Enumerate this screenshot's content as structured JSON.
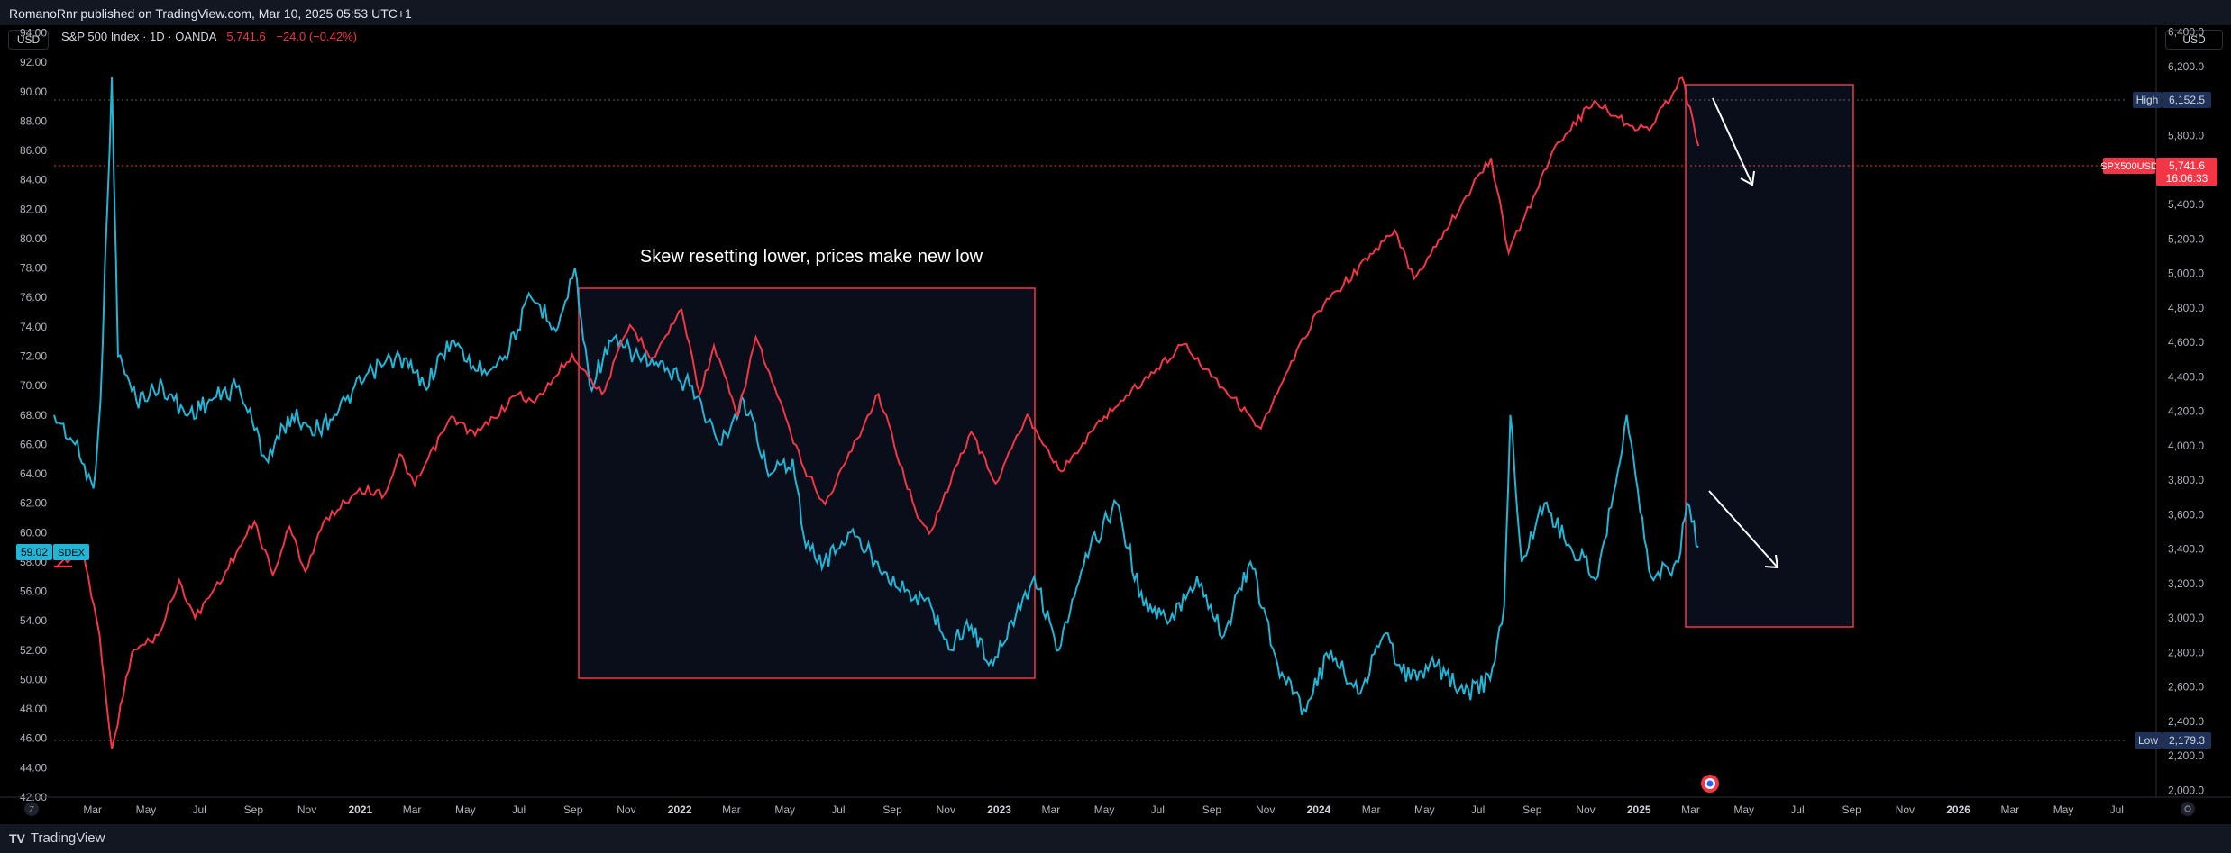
{
  "header": {
    "publish_text": "RomanoRnr published on TradingView.com, Mar 10, 2025 05:53 UTC+1"
  },
  "footer": {
    "brand": "TradingView",
    "logo": "tradingview-logo-icon"
  },
  "controls": {
    "left_currency": "USD",
    "right_currency": "USD",
    "left_corner": "Z"
  },
  "legend": {
    "title": "S&P 500 Index · 1D · OANDA",
    "price": "5,741.6",
    "change": "−24.0 (−0.42%)"
  },
  "colors": {
    "spx": "#f23645",
    "sdex": "#21b5d6",
    "box_border": "#f23645",
    "box_fill": "#0a0e1a",
    "background": "#000000"
  },
  "annotation": {
    "text": "Skew resetting lower, prices make new low"
  },
  "price_labels": {
    "high_tag": "High",
    "high_value": "6,152.5",
    "low_tag": "Low",
    "low_value": "2,179.3",
    "spx_tag": "SPX500USD",
    "spx_value": "5,741.6",
    "spx_countdown": "16:06:33",
    "sdex_value": "59.02",
    "sdex_tag": "SDEX"
  },
  "chart_data": {
    "type": "line",
    "left_axis": {
      "ticks": [
        "94.00",
        "92.00",
        "90.00",
        "88.00",
        "86.00",
        "84.00",
        "82.00",
        "80.00",
        "78.00",
        "76.00",
        "74.00",
        "72.00",
        "70.00",
        "68.00",
        "66.00",
        "64.00",
        "62.00",
        "60.00",
        "58.00",
        "56.00",
        "54.00",
        "52.00",
        "50.00",
        "48.00",
        "46.00",
        "44.00",
        "42.00"
      ],
      "range": [
        42,
        94.4
      ]
    },
    "right_axis": {
      "ticks": [
        "6,400.0",
        "6,200.0",
        "6,000.0",
        "5,800.0",
        "5,600.0",
        "5,400.0",
        "5,200.0",
        "5,000.0",
        "4,800.0",
        "4,600.0",
        "4,400.0",
        "4,200.0",
        "4,000.0",
        "3,800.0",
        "3,600.0",
        "3,400.0",
        "3,200.0",
        "3,000.0",
        "2,800.0",
        "2,600.0",
        "2,400.0",
        "2,200.0",
        "2,000.0"
      ],
      "range": [
        1960,
        6430
      ]
    },
    "x_ticks": [
      "Mar",
      "May",
      "Jul",
      "Sep",
      "Nov",
      "2021",
      "Mar",
      "May",
      "Jul",
      "Sep",
      "Nov",
      "2022",
      "Mar",
      "May",
      "Jul",
      "Sep",
      "Nov",
      "2023",
      "Mar",
      "May",
      "Jul",
      "Sep",
      "Nov",
      "2024",
      "Mar",
      "May",
      "Jul",
      "Sep",
      "Nov",
      "2025",
      "Mar",
      "May",
      "Jul",
      "Sep",
      "Nov",
      "2026",
      "Mar",
      "May",
      "Jul"
    ],
    "x_range": [
      "2020-01-17",
      "2026-08-15"
    ],
    "series": [
      {
        "name": "SPX500USD",
        "axis": "right",
        "points": [
          [
            "2020-01-17",
            3300
          ],
          [
            "2020-02-19",
            3390
          ],
          [
            "2020-03-09",
            2900
          ],
          [
            "2020-03-23",
            2240
          ],
          [
            "2020-04-15",
            2800
          ],
          [
            "2020-05-15",
            2900
          ],
          [
            "2020-06-08",
            3220
          ],
          [
            "2020-06-26",
            3000
          ],
          [
            "2020-07-31",
            3270
          ],
          [
            "2020-09-02",
            3560
          ],
          [
            "2020-09-23",
            3250
          ],
          [
            "2020-10-12",
            3530
          ],
          [
            "2020-10-30",
            3270
          ],
          [
            "2020-11-20",
            3560
          ],
          [
            "2020-12-31",
            3750
          ],
          [
            "2021-01-29",
            3720
          ],
          [
            "2021-02-15",
            3950
          ],
          [
            "2021-03-04",
            3770
          ],
          [
            "2021-04-15",
            4170
          ],
          [
            "2021-05-12",
            4060
          ],
          [
            "2021-06-30",
            4300
          ],
          [
            "2021-07-19",
            4250
          ],
          [
            "2021-08-31",
            4530
          ],
          [
            "2021-10-04",
            4300
          ],
          [
            "2021-11-05",
            4700
          ],
          [
            "2021-12-01",
            4510
          ],
          [
            "2022-01-03",
            4790
          ],
          [
            "2022-01-24",
            4300
          ],
          [
            "2022-02-09",
            4580
          ],
          [
            "2022-03-08",
            4170
          ],
          [
            "2022-03-29",
            4630
          ],
          [
            "2022-05-20",
            3900
          ],
          [
            "2022-06-16",
            3660
          ],
          [
            "2022-08-16",
            4300
          ],
          [
            "2022-09-30",
            3580
          ],
          [
            "2022-10-13",
            3490
          ],
          [
            "2022-11-30",
            4080
          ],
          [
            "2022-12-28",
            3780
          ],
          [
            "2023-02-02",
            4180
          ],
          [
            "2023-03-13",
            3850
          ],
          [
            "2023-05-01",
            4170
          ],
          [
            "2023-06-30",
            4450
          ],
          [
            "2023-07-31",
            4590
          ],
          [
            "2023-10-27",
            4100
          ],
          [
            "2023-12-29",
            4770
          ],
          [
            "2024-03-28",
            5250
          ],
          [
            "2024-04-19",
            4970
          ],
          [
            "2024-07-16",
            5670
          ],
          [
            "2024-08-05",
            5120
          ],
          [
            "2024-09-30",
            5760
          ],
          [
            "2024-11-11",
            6000
          ],
          [
            "2024-12-18",
            5870
          ],
          [
            "2025-01-13",
            5830
          ],
          [
            "2025-02-19",
            6140
          ],
          [
            "2025-03-10",
            5740
          ]
        ]
      },
      {
        "name": "SDEX",
        "axis": "left",
        "points": [
          [
            "2020-01-17",
            68
          ],
          [
            "2020-02-10",
            66
          ],
          [
            "2020-03-02",
            63
          ],
          [
            "2020-03-10",
            69
          ],
          [
            "2020-03-23",
            91
          ],
          [
            "2020-03-30",
            72
          ],
          [
            "2020-04-20",
            69
          ],
          [
            "2020-05-20",
            70
          ],
          [
            "2020-06-15",
            68
          ],
          [
            "2020-07-15",
            69
          ],
          [
            "2020-08-15",
            70
          ],
          [
            "2020-09-15",
            65
          ],
          [
            "2020-10-15",
            68
          ],
          [
            "2020-11-15",
            67
          ],
          [
            "2020-12-15",
            69
          ],
          [
            "2021-01-15",
            71
          ],
          [
            "2021-02-15",
            72
          ],
          [
            "2021-03-15",
            70
          ],
          [
            "2021-04-15",
            73
          ],
          [
            "2021-05-15",
            71
          ],
          [
            "2021-06-15",
            72
          ],
          [
            "2021-07-15",
            76
          ],
          [
            "2021-08-15",
            74
          ],
          [
            "2021-09-03",
            78
          ],
          [
            "2021-09-20",
            70
          ],
          [
            "2021-10-15",
            73
          ],
          [
            "2021-11-15",
            72
          ],
          [
            "2021-12-15",
            71
          ],
          [
            "2022-01-15",
            70
          ],
          [
            "2022-02-15",
            66
          ],
          [
            "2022-03-15",
            69
          ],
          [
            "2022-04-15",
            64
          ],
          [
            "2022-05-10",
            65
          ],
          [
            "2022-05-25",
            59
          ],
          [
            "2022-06-15",
            58
          ],
          [
            "2022-07-15",
            60
          ],
          [
            "2022-08-15",
            58
          ],
          [
            "2022-09-15",
            56
          ],
          [
            "2022-10-15",
            55
          ],
          [
            "2022-11-07",
            52
          ],
          [
            "2022-11-25",
            54
          ],
          [
            "2022-12-25",
            51
          ],
          [
            "2023-01-15",
            54
          ],
          [
            "2023-02-10",
            57
          ],
          [
            "2023-03-10",
            52
          ],
          [
            "2023-04-15",
            59
          ],
          [
            "2023-05-15",
            62
          ],
          [
            "2023-06-15",
            55
          ],
          [
            "2023-07-15",
            54
          ],
          [
            "2023-08-15",
            57
          ],
          [
            "2023-09-15",
            53
          ],
          [
            "2023-10-15",
            58
          ],
          [
            "2023-11-15",
            51
          ],
          [
            "2023-12-15",
            48
          ],
          [
            "2024-01-15",
            52
          ],
          [
            "2024-02-15",
            49
          ],
          [
            "2024-03-15",
            53
          ],
          [
            "2024-04-15",
            50
          ],
          [
            "2024-05-15",
            51
          ],
          [
            "2024-06-15",
            49
          ],
          [
            "2024-07-15",
            50
          ],
          [
            "2024-07-31",
            55
          ],
          [
            "2024-08-07",
            68
          ],
          [
            "2024-08-20",
            58
          ],
          [
            "2024-09-15",
            62
          ],
          [
            "2024-10-15",
            59
          ],
          [
            "2024-11-15",
            57
          ],
          [
            "2024-12-18",
            68
          ],
          [
            "2025-01-15",
            57
          ],
          [
            "2025-02-15",
            58
          ],
          [
            "2025-02-25",
            62
          ],
          [
            "2025-03-10",
            59
          ]
        ]
      }
    ]
  }
}
